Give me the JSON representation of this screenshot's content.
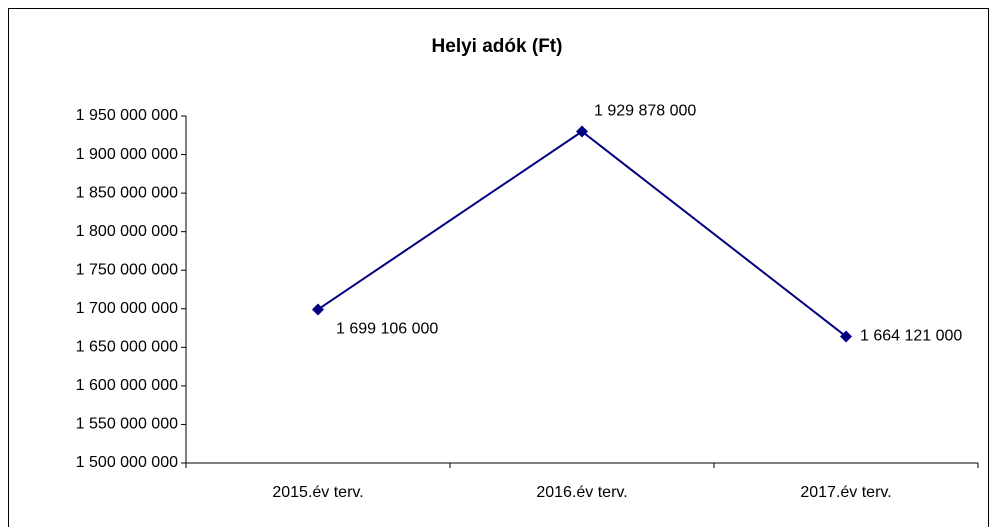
{
  "chart_data": {
    "type": "line",
    "title": "Helyi adók (Ft)",
    "categories": [
      "2015.év terv.",
      "2016.év terv.",
      "2017.év terv."
    ],
    "series": [
      {
        "name": "Helyi adók",
        "color": "#000080",
        "values": [
          1699106000,
          1929878000,
          1664121000
        ],
        "value_labels": [
          "1 699 106 000",
          "1 929 878 000",
          "1 664 121 000"
        ]
      }
    ],
    "ylim": [
      1500000000,
      1950000000
    ],
    "yticks": [
      {
        "value": 1500000000,
        "label": "1 500 000 000"
      },
      {
        "value": 1550000000,
        "label": "1 550 000 000"
      },
      {
        "value": 1600000000,
        "label": "1 600 000 000"
      },
      {
        "value": 1650000000,
        "label": "1 650 000 000"
      },
      {
        "value": 1700000000,
        "label": "1 700 000 000"
      },
      {
        "value": 1750000000,
        "label": "1 750 000 000"
      },
      {
        "value": 1800000000,
        "label": "1 800 000 000"
      },
      {
        "value": 1850000000,
        "label": "1 850 000 000"
      },
      {
        "value": 1900000000,
        "label": "1 900 000 000"
      },
      {
        "value": 1950000000,
        "label": "1 950 000 000"
      }
    ],
    "grid": false
  }
}
